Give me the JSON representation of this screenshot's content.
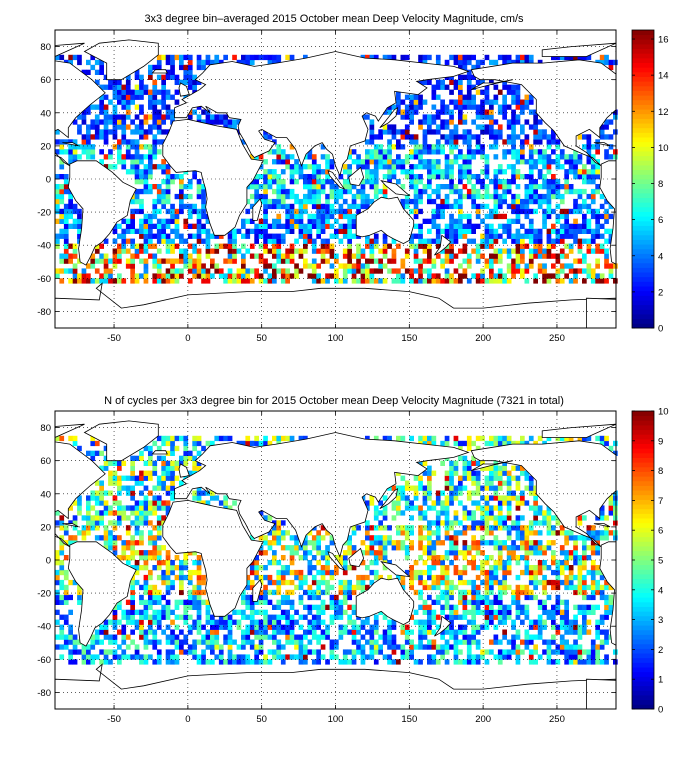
{
  "chart_data": [
    {
      "type": "heatmap",
      "title": "3x3 degree bin–averaged 2015 October mean Deep Velocity Magnitude, cm/s",
      "xlabel": "",
      "ylabel": "",
      "xlim": [
        -90,
        290
      ],
      "ylim": [
        -90,
        90
      ],
      "x_ticks": [
        -50,
        0,
        50,
        100,
        150,
        200,
        250
      ],
      "y_ticks": [
        80,
        60,
        40,
        20,
        0,
        -20,
        -40,
        -60,
        -80
      ],
      "grid": true,
      "bin_size_degrees": 3,
      "colormap": "jet",
      "colorbar": {
        "min": 0,
        "max": 16.5,
        "ticks": [
          0,
          2,
          4,
          6,
          8,
          10,
          12,
          14,
          16
        ]
      },
      "value_bands": [
        {
          "lat_range": [
            60,
            75
          ],
          "approx_value": 3
        },
        {
          "lat_range": [
            20,
            60
          ],
          "approx_value": 3
        },
        {
          "lat_range": [
            -15,
            20
          ],
          "approx_value": 5
        },
        {
          "lat_range": [
            -40,
            -15
          ],
          "approx_value": 4
        },
        {
          "lat_range": [
            -62,
            -40
          ],
          "approx_value": 11
        }
      ]
    },
    {
      "type": "heatmap",
      "title": "N of cycles per 3x3 degree bin for 2015 October mean Deep Velocity Magnitude (7321 in total)",
      "xlabel": "",
      "ylabel": "",
      "xlim": [
        -90,
        290
      ],
      "ylim": [
        -90,
        90
      ],
      "x_ticks": [
        -50,
        0,
        50,
        100,
        150,
        200,
        250
      ],
      "y_ticks": [
        80,
        60,
        40,
        20,
        0,
        -20,
        -40,
        -60,
        -80
      ],
      "grid": true,
      "bin_size_degrees": 3,
      "colormap": "jet",
      "total_cycles": 7321,
      "colorbar": {
        "min": 0,
        "max": 10,
        "ticks": [
          0,
          1,
          2,
          3,
          4,
          5,
          6,
          7,
          8,
          9,
          10
        ]
      },
      "value_bands": [
        {
          "lat_range": [
            20,
            75
          ],
          "approx_value": 4
        },
        {
          "lat_range": [
            -20,
            20
          ],
          "approx_value": 5
        },
        {
          "lat_range": [
            -62,
            -20
          ],
          "approx_value": 3
        }
      ]
    }
  ],
  "colors": {
    "background": "#ffffff",
    "axis": "#000000",
    "grid": "#000000",
    "coast": "#000000"
  }
}
